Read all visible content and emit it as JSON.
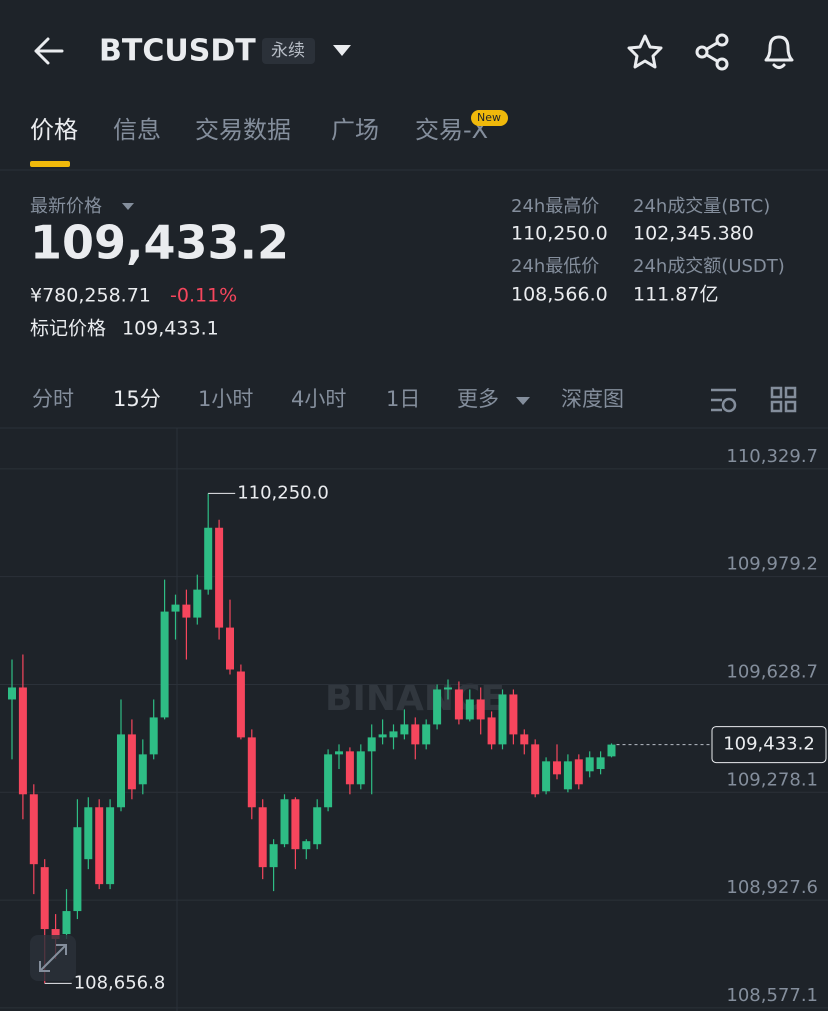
{
  "header": {
    "symbol": "BTCUSDT",
    "contract": "永续"
  },
  "tabs": {
    "items": [
      "价格",
      "信息",
      "交易数据",
      "广场",
      "交易-X"
    ],
    "badge": "New"
  },
  "price": {
    "label": "最新价格",
    "last": "109,433.2",
    "cny": "¥780,258.71",
    "change": "-0.11%",
    "mark_label": "标记价格",
    "mark": "109,433.1"
  },
  "stats": [
    {
      "label": "24h最高价",
      "value": "110,250.0"
    },
    {
      "label": "24h成交量(BTC)",
      "value": "102,345.380"
    },
    {
      "label": "24h最低价",
      "value": "108,566.0"
    },
    {
      "label": "24h成交额(USDT)",
      "value": "111.87亿"
    }
  ],
  "intervals": [
    "分时",
    "15分",
    "1小时",
    "4小时",
    "1日",
    "更多",
    "深度图"
  ],
  "chart_data": {
    "type": "candlestick",
    "watermark": "BINANCE",
    "up_color": "#2ebd85",
    "down_color": "#f6465d",
    "grid": true,
    "ylim": [
      108567,
      110456
    ],
    "yticks": [
      {
        "value": 110329.7,
        "label": "110,329.7"
      },
      {
        "value": 109979.2,
        "label": "109,979.2"
      },
      {
        "value": 109628.7,
        "label": "109,628.7"
      },
      {
        "value": 109278.1,
        "label": "109,278.1"
      },
      {
        "value": 108927.6,
        "label": "108,927.6"
      },
      {
        "value": 108577.1,
        "label": "108,577.1"
      }
    ],
    "open": [
      109579.9,
      109618.9,
      109271.6,
      109034.7,
      108833.4,
      108817.2,
      108891.9,
      109060.6,
      109229.4,
      108979.5,
      109229.4,
      109466.3,
      109304.1,
      109401.4,
      109521.5,
      109865.6,
      109888.3,
      109846.1,
      109937.0,
      110138.2,
      109813.6,
      109670.8,
      109456.6,
      109229.4,
      109034.7,
      109109.3,
      109255.4,
      109093.1,
      109109.3,
      109229.4,
      109401.4,
      109411.2,
      109304.1,
      109411.2,
      109456.6,
      109456.6,
      109466.3,
      109498.8,
      109433.9,
      109498.8,
      109612.4,
      109612.4,
      109515.0,
      109579.9,
      109521.5,
      109433.9,
      109596.2,
      109466.3,
      109433.9,
      109281.3,
      109378.7,
      109287.8,
      109385.2,
      109346.3,
      109353.7,
      109394.9
    ],
    "high": [
      109709.8,
      109726.0,
      109304.1,
      109060.6,
      108882.1,
      108963.3,
      109255.4,
      109261.9,
      109255.4,
      109255.4,
      109579.9,
      109515.0,
      109450.1,
      109579.9,
      109969.4,
      109920.7,
      109937.0,
      109985.7,
      110250.0,
      110164.2,
      109904.5,
      109693.5,
      109482.6,
      109255.4,
      109125.5,
      109271.6,
      109261.9,
      109125.5,
      109255.4,
      109417.7,
      109433.9,
      109424.2,
      109433.9,
      109498.8,
      109515.0,
      109498.8,
      109547.5,
      109521.5,
      109515.0,
      109628.6,
      109644.9,
      109638.4,
      109612.4,
      109618.9,
      109541.0,
      109612.4,
      109612.4,
      109482.6,
      109450.1,
      109391.7,
      109433.9,
      109401.4,
      109401.4,
      109411.2,
      109411.2,
      109437.1
    ],
    "low": [
      109385.2,
      109190.5,
      108947.0,
      108656.8,
      108736.1,
      108801.0,
      108865.9,
      109028.2,
      108963.3,
      108963.3,
      109216.4,
      109255.4,
      109271.6,
      109385.2,
      109515.0,
      109774.7,
      109709.8,
      109823.4,
      109920.7,
      109774.7,
      109661.1,
      109450.1,
      109190.5,
      108995.7,
      108956.8,
      109099.6,
      109028.2,
      109060.6,
      109093.1,
      109216.4,
      109353.7,
      109271.6,
      109287.8,
      109271.6,
      109433.9,
      109417.7,
      109450.1,
      109385.2,
      109417.7,
      109482.6,
      109579.9,
      109498.8,
      109508.5,
      109466.3,
      109417.7,
      109417.7,
      109433.9,
      109401.4,
      109261.9,
      109271.6,
      109320.3,
      109278.1,
      109287.8,
      109326.8,
      109336.5,
      109391.7
    ],
    "close": [
      109618.9,
      109271.6,
      109044.4,
      108833.4,
      108801.0,
      108891.9,
      109164.5,
      109229.4,
      108979.5,
      109229.4,
      109466.3,
      109287.8,
      109401.4,
      109521.5,
      109865.6,
      109888.3,
      109846.1,
      109937.0,
      110138.2,
      109813.6,
      109677.3,
      109456.6,
      109229.4,
      109034.7,
      109109.3,
      109255.4,
      109093.1,
      109119.1,
      109229.4,
      109401.4,
      109411.2,
      109304.1,
      109411.2,
      109456.6,
      109466.3,
      109476.1,
      109498.8,
      109433.9,
      109498.8,
      109612.4,
      109618.9,
      109515.0,
      109579.9,
      109515.0,
      109433.9,
      109596.2,
      109466.3,
      109433.9,
      109271.6,
      109378.7,
      109336.5,
      109378.7,
      109304.1,
      109391.7,
      109391.7,
      109433.2
    ],
    "annotations": [
      {
        "value": 110250.0,
        "label": "110,250.0"
      },
      {
        "value": 108656.8,
        "label": "108,656.8"
      }
    ],
    "last_price": {
      "value": 109433.2,
      "label": "109,433.2"
    }
  }
}
